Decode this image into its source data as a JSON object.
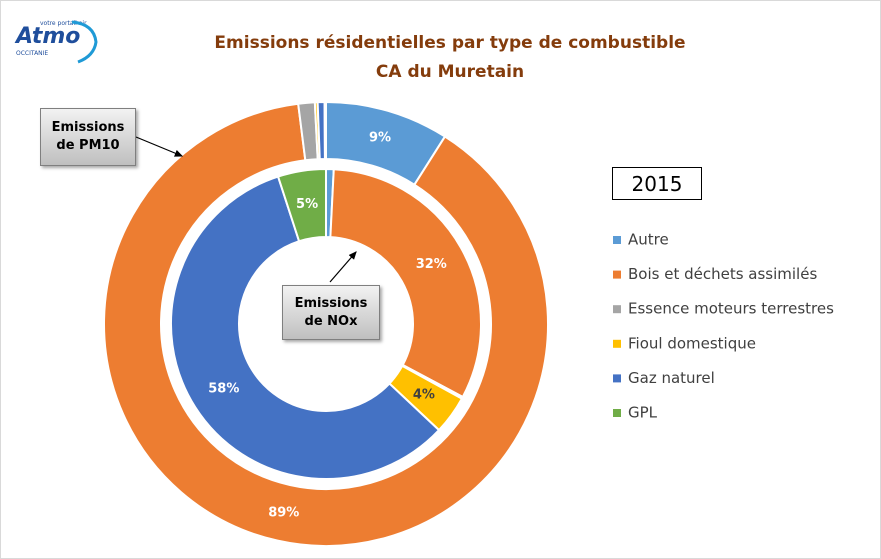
{
  "logo": {
    "name": "Atmo",
    "tagline": "votre portail air",
    "region": "OCCITANIE"
  },
  "chart_data": {
    "type": "donut",
    "title": "Emissions résidentielles par type de combustible",
    "subtitle": "CA du Muretain",
    "annotation": "2015",
    "categories": [
      "Autre",
      "Bois et déchets assimilés",
      "Essence moteurs terrestres",
      "Fioul domestique",
      "Gaz naturel",
      "GPL"
    ],
    "colors": [
      "#5b9bd5",
      "#ed7d31",
      "#a5a5a5",
      "#ffc000",
      "#4472c4",
      "#70ad47"
    ],
    "legend": "right",
    "series": [
      {
        "name": "Emissions de PM10",
        "values": [
          9,
          89,
          1.2,
          0.2,
          0.5,
          0.1
        ],
        "value_labels": [
          "9%",
          "89%",
          null,
          null,
          null,
          null
        ]
      },
      {
        "name": "Emissions de NOx",
        "values": [
          0.8,
          32,
          0.2,
          4,
          58,
          5
        ],
        "value_labels": [
          null,
          "32%",
          null,
          "4%",
          "58%",
          "5%"
        ]
      }
    ]
  }
}
